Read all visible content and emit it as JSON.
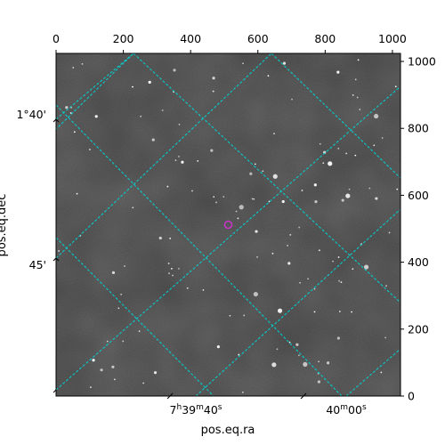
{
  "chart_data": {
    "type": "scatter",
    "description_kind": "astronomical image with WCS coordinate grid",
    "xlabel": "pos.eq.ra",
    "ylabel": "pos.eq.dec",
    "pixel_axes": {
      "x_ticks": [
        0,
        200,
        400,
        600,
        800,
        1000
      ],
      "y_ticks": [
        0,
        200,
        400,
        600,
        800,
        1000
      ],
      "xlim": [
        0,
        1024
      ],
      "ylim": [
        0,
        1024
      ]
    },
    "ra_tick_labels": [
      {
        "h": "7",
        "m": "39",
        "s": "40"
      },
      {
        "h": "",
        "m": "40",
        "s": "00"
      }
    ],
    "dec_tick_labels": [
      "1°40'",
      "45'"
    ],
    "grid": true,
    "grid_color": "#00d4d4",
    "marker": {
      "x": 512,
      "y": 512,
      "color": "#cc33cc",
      "shape": "circle"
    },
    "image_colormap": "gray"
  }
}
